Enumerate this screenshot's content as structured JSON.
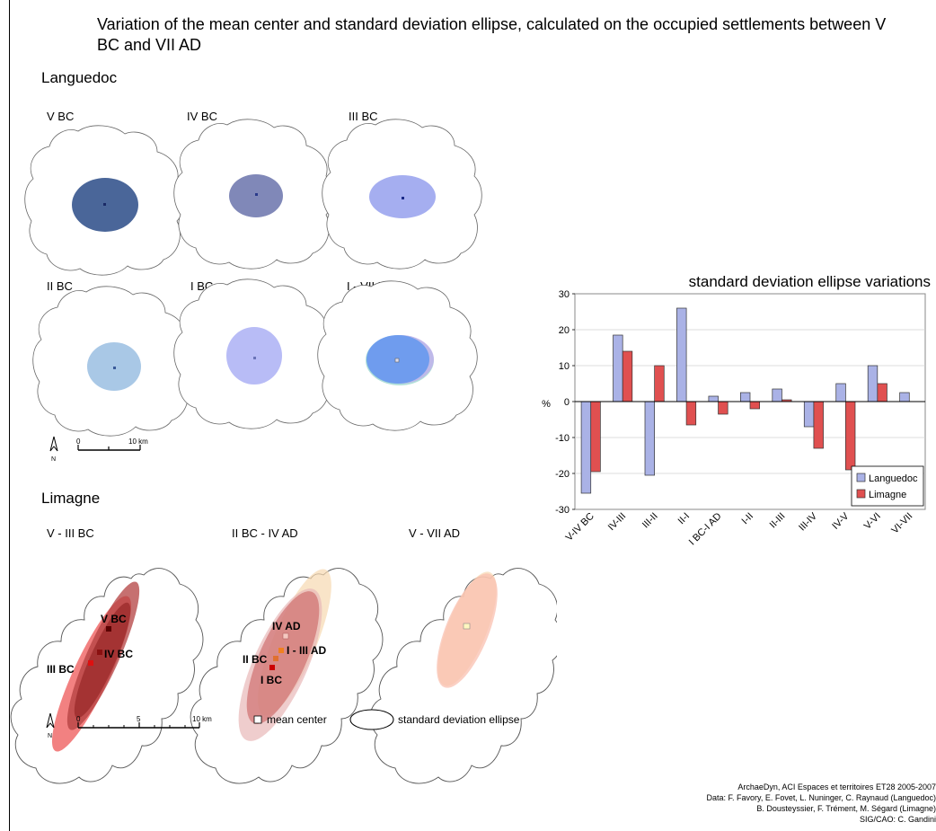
{
  "title": "Variation of the mean center and standard deviation ellipse, calculated on the occupied settlements between V BC and VII AD",
  "languedoc": {
    "label": "Languedoc",
    "maps": [
      "V BC",
      "IV BC",
      "III BC",
      "II BC",
      "I BC",
      "I - VII D"
    ],
    "scale_label": "10 km",
    "scale_zero": "0",
    "north": "N",
    "colors": [
      "#4a6699",
      "#8088b8",
      "#9aa3e6",
      "#9fc4e6",
      "#b3b8f5",
      "#6699ee"
    ]
  },
  "limagne": {
    "label": "Limagne",
    "maps": [
      "V - III BC",
      "II BC - IV AD",
      "V - VII AD"
    ],
    "center_labels": {
      "map1": [
        "V BC",
        "IV BC",
        "III BC"
      ],
      "map2": [
        "IV AD",
        "II BC",
        "I - III AD",
        "I BC"
      ]
    },
    "scale_zero": "0",
    "scale_mid": "5",
    "scale_label": "10 km",
    "north": "N"
  },
  "legend": {
    "mean_center": "mean center",
    "std_ellipse": "standard deviation ellipse"
  },
  "credits": [
    "ArchaeDyn, ACI Espaces et territoires ET28 2005-2007",
    "Data: F. Favory, E. Fovet, L. Nuninger, C. Raynaud (Languedoc)",
    "B. Dousteyssier, F. Trément, M. Ségard (Limagne)",
    "SIG/CAO: C. Gandini"
  ],
  "chart_data": {
    "type": "bar",
    "title": "standard deviation ellipse variations",
    "xlabel": "",
    "ylabel": "%",
    "ylim": [
      -30,
      30
    ],
    "yticks": [
      -30,
      -20,
      -10,
      0,
      10,
      20,
      30
    ],
    "grid": true,
    "legend_position": "bottom-right",
    "categories": [
      "V-IV BC",
      "IV-III",
      "III-II",
      "II-I",
      "I BC-I AD",
      "I-II",
      "II-III",
      "III-IV",
      "IV-V",
      "V-VI",
      "VI-VII"
    ],
    "series": [
      {
        "name": "Languedoc",
        "color": "#aab2e6",
        "values": [
          -25.5,
          18.5,
          -20.5,
          26,
          1.5,
          2.5,
          3.5,
          -7,
          5,
          10,
          2.5
        ]
      },
      {
        "name": "Limagne",
        "color": "#e05050",
        "values": [
          -19.5,
          14,
          10,
          -6.5,
          -3.5,
          -2,
          0.5,
          -13,
          -19,
          5,
          null
        ]
      }
    ]
  }
}
